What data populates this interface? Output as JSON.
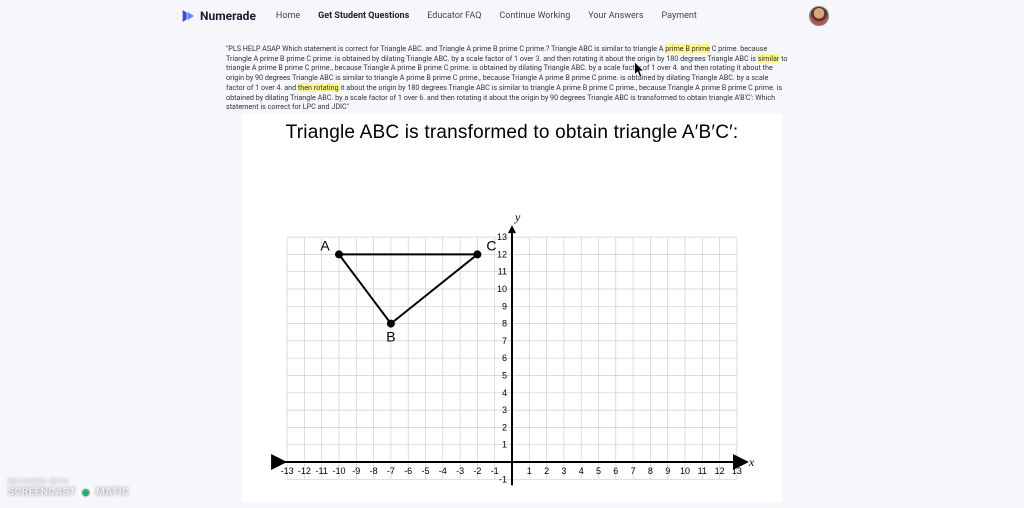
{
  "brand": {
    "name": "Numerade",
    "logo_color": "#3b49df"
  },
  "nav": {
    "items": [
      {
        "label": "Home",
        "active": false
      },
      {
        "label": "Get Student Questions",
        "active": true
      },
      {
        "label": "Educator FAQ",
        "active": false
      },
      {
        "label": "Continue Working",
        "active": false
      },
      {
        "label": "Your Answers",
        "active": false
      },
      {
        "label": "Payment",
        "active": false
      }
    ]
  },
  "question": {
    "pre": "\"PLS HELP ASAP Which statement is correct for Triangle ABC. and Triangle A prime B prime C prime.? Triangle ABC is similar to triangle A ",
    "hl1": "prime B prime",
    "mid1": " C prime. because Triangle A prime B prime C prime. is obtained by dilating Triangle ABC. by a scale factor of 1 over 3. and then rotating it about the origin by 180 degrees Triangle ABC is ",
    "hl2": "similar",
    "mid2": " to triangle A prime B prime C prime., because Triangle A prime B prime C prime. is obtained by dilating Triangle ABC. by a scale factor of 1 over 4. and then rotating it about the origin by 90 degrees Triangle ABC is similar to triangle A prime B prime C prime., because Triangle A prime B prime C prime. is obtained by dilating Triangle ABC. by a scale factor of 1 over 4. and ",
    "hl3": "then rotating",
    "post": " it about the origin by 180 degrees Triangle ABC is similar to triangle A prime B prime C prime., because Triangle A prime B prime C prime. is obtained by dilating Triangle ABC. by a scale factor of 1 over 6. and then rotating it about the origin by 90 degrees Triangle ABC is transformed to obtain triangle A'B'C': Which statement is correct for LPC and JDIC\""
  },
  "figure": {
    "title": "Triangle ABC is transformed to obtain triangle A′B′C′:",
    "y_axis_label": "y",
    "x_axis_label": "x",
    "x_range": [
      -13,
      13
    ],
    "y_range": [
      -1,
      13
    ],
    "grid_step": 1,
    "grid_color": "#cfcfcf",
    "axis_color": "#000000",
    "tick_font_size": 9,
    "tick_color": "#000000",
    "triangle": {
      "points": {
        "A": [
          -10,
          12
        ],
        "B": [
          -7,
          8
        ],
        "C": [
          -2,
          12
        ]
      },
      "stroke": "#000000",
      "stroke_width": 2,
      "vertex_radius": 4,
      "vertex_fill": "#000000",
      "label_font_size": 14
    }
  },
  "watermark": {
    "line1": "RECORDED WITH",
    "brand_a": "SCREENCAST",
    "brand_b": "MATIC"
  },
  "colors": {
    "page_bg": "#f6f7fb",
    "content_bg": "#ffffff",
    "highlight": "#fff68f"
  }
}
